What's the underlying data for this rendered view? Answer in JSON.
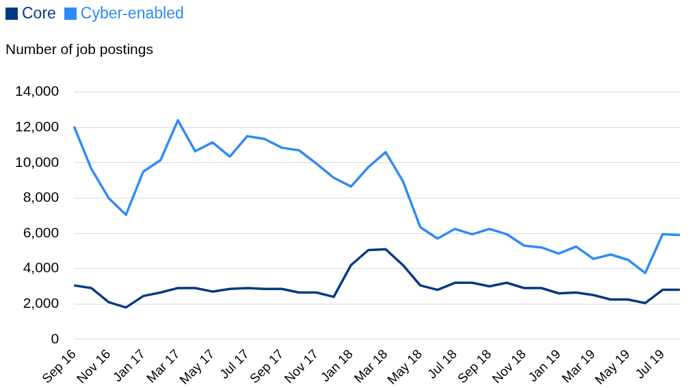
{
  "chart_data": {
    "type": "line",
    "ylabel": "Number of job postings",
    "categories": [
      "Sep 16",
      null,
      "Nov 16",
      null,
      "Jan 17",
      null,
      "Mar 17",
      null,
      "May 17",
      null,
      "Jul 17",
      null,
      "Sep 17",
      null,
      "Nov 17",
      null,
      "Jan 18",
      null,
      "Mar 18",
      null,
      "May 18",
      null,
      "Jul 18",
      null,
      "Sep 18",
      null,
      "Nov 18",
      null,
      "Jan 19",
      null,
      "Mar 19",
      null,
      "May 19",
      null,
      "Jul 19",
      null
    ],
    "series": [
      {
        "name": "Core",
        "color": "#003a80",
        "values": [
          3050,
          2900,
          2100,
          1800,
          2450,
          2650,
          2900,
          2900,
          2700,
          2850,
          2900,
          2850,
          2850,
          2650,
          2650,
          2400,
          4200,
          5050,
          5100,
          4200,
          3050,
          2800,
          3200,
          3200,
          3000,
          3200,
          2900,
          2900,
          2600,
          2650,
          2500,
          2250,
          2250,
          2050,
          2800,
          2800
        ]
      },
      {
        "name": "Cyber-enabled",
        "color": "#2e8bf5",
        "values": [
          12050,
          9650,
          8000,
          7050,
          9500,
          10150,
          12400,
          10650,
          11150,
          10350,
          11500,
          11350,
          10850,
          10700,
          9950,
          9150,
          8650,
          9750,
          10600,
          8950,
          6350,
          5700,
          6250,
          5950,
          6250,
          5950,
          5300,
          5200,
          4850,
          5250,
          4550,
          4800,
          4500,
          3750,
          5950,
          5900
        ]
      }
    ],
    "ylim": [
      0,
      14000
    ],
    "yticks": [
      {
        "value": 0,
        "label": "0"
      },
      {
        "value": 2000,
        "label": "2,000"
      },
      {
        "value": 4000,
        "label": "4,000"
      },
      {
        "value": 6000,
        "label": "6,000"
      },
      {
        "value": 8000,
        "label": "8,000"
      },
      {
        "value": 10000,
        "label": "10,000"
      },
      {
        "value": 12000,
        "label": "12,000"
      },
      {
        "value": 14000,
        "label": "14,000"
      }
    ],
    "grid": "y",
    "legend": "top left",
    "marker": "none",
    "line_style": "solid"
  }
}
